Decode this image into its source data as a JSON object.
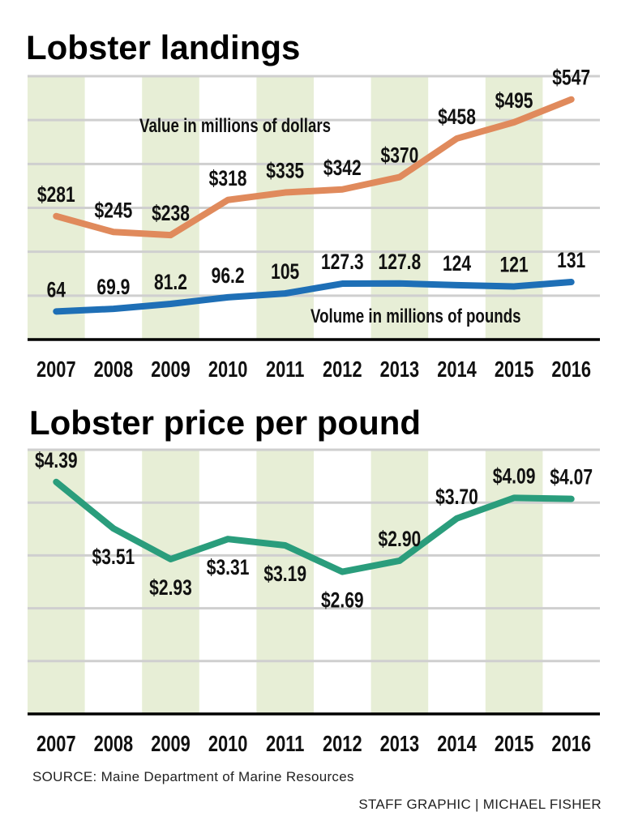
{
  "chart_data": [
    {
      "type": "line",
      "title": "Lobster landings",
      "categories": [
        "2007",
        "2008",
        "2009",
        "2010",
        "2011",
        "2012",
        "2013",
        "2014",
        "2015",
        "2016"
      ],
      "series": [
        {
          "name": "Value in millions of dollars",
          "color": "#e08a5c",
          "values": [
            281,
            245,
            238,
            318,
            335,
            342,
            370,
            458,
            495,
            547
          ],
          "labels": [
            "$281",
            "$245",
            "$238",
            "$318",
            "$335",
            "$342",
            "$370",
            "$458",
            "$495",
            "$547"
          ]
        },
        {
          "name": "Volume in millions of pounds",
          "color": "#1e6fb6",
          "values": [
            64,
            69.9,
            81.2,
            96.2,
            105,
            127.3,
            127.8,
            124,
            121,
            131
          ],
          "labels": [
            "64",
            "69.9",
            "81.2",
            "96.2",
            "105",
            "127.3",
            "127.8",
            "124",
            "121",
            "131"
          ]
        }
      ],
      "ylim": [
        0,
        600
      ],
      "grid_step": 100,
      "grid": true,
      "xlabel": "",
      "ylabel": ""
    },
    {
      "type": "line",
      "title": "Lobster price per pound",
      "categories": [
        "2007",
        "2008",
        "2009",
        "2010",
        "2011",
        "2012",
        "2013",
        "2014",
        "2015",
        "2016"
      ],
      "series": [
        {
          "name": "Price per pound",
          "color": "#2a9d7c",
          "values": [
            4.39,
            3.51,
            2.93,
            3.31,
            3.19,
            2.69,
            2.9,
            3.7,
            4.09,
            4.07
          ],
          "labels": [
            "$4.39",
            "$3.51",
            "$2.93",
            "$3.31",
            "$3.19",
            "$2.69",
            "$2.90",
            "$3.70",
            "$4.09",
            "$4.07"
          ]
        }
      ],
      "ylim": [
        0,
        5
      ],
      "grid_step": 1,
      "grid": true,
      "xlabel": "",
      "ylabel": ""
    }
  ],
  "colors": {
    "shade": "#e7eed6",
    "grid": "#cfcfcf"
  },
  "footer": {
    "source": "SOURCE: Maine Department of Marine Resources",
    "credit": "STAFF GRAPHIC | MICHAEL FISHER"
  }
}
